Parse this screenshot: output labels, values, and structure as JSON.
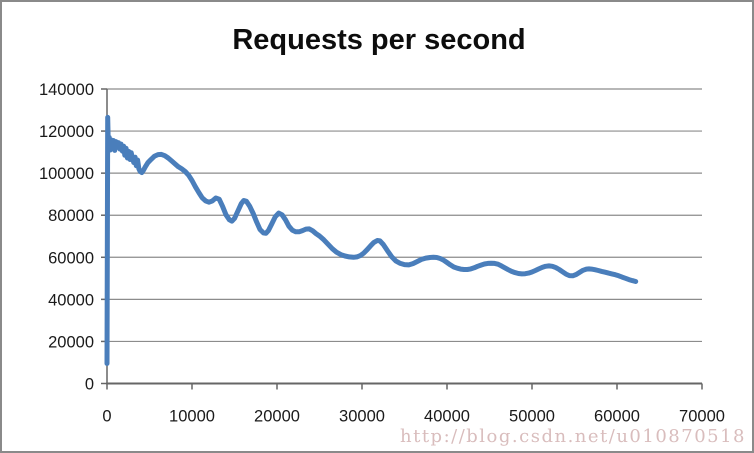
{
  "watermark": {
    "text": "http://blog.csdn.net/u010870518",
    "color": "#D9BDBD"
  },
  "chart_data": {
    "type": "line",
    "title": "Requests per second",
    "xlabel": "",
    "ylabel": "",
    "xlim": [
      0,
      70000
    ],
    "ylim": [
      0,
      140000
    ],
    "grid": "horizontal",
    "legend": "none",
    "colors": {
      "grid": "#8C8C8C",
      "axis": "#666666",
      "tick_text": "#1A1A1A",
      "line": "#4A7EBB"
    },
    "x_ticks": [
      {
        "v": 0,
        "label": "0"
      },
      {
        "v": 10000,
        "label": "10000"
      },
      {
        "v": 20000,
        "label": "20000"
      },
      {
        "v": 30000,
        "label": "30000"
      },
      {
        "v": 40000,
        "label": "40000"
      },
      {
        "v": 50000,
        "label": "50000"
      },
      {
        "v": 60000,
        "label": "60000"
      },
      {
        "v": 70000,
        "label": "70000"
      }
    ],
    "y_ticks": [
      {
        "v": 0,
        "label": "0"
      },
      {
        "v": 20000,
        "label": "20000"
      },
      {
        "v": 40000,
        "label": "40000"
      },
      {
        "v": 60000,
        "label": "60000"
      },
      {
        "v": 80000,
        "label": "80000"
      },
      {
        "v": 100000,
        "label": "100000"
      },
      {
        "v": 120000,
        "label": "120000"
      },
      {
        "v": 140000,
        "label": "140000"
      }
    ],
    "series": [
      {
        "name": "Requests per second",
        "color": "#4A7EBB",
        "stroke_width": 5,
        "points": [
          [
            0,
            9500
          ],
          [
            80,
            126500
          ],
          [
            160,
            111000
          ],
          [
            260,
            117000
          ],
          [
            360,
            111000
          ],
          [
            470,
            115800
          ],
          [
            600,
            113200
          ],
          [
            750,
            115500
          ],
          [
            900,
            110800
          ],
          [
            1050,
            115000
          ],
          [
            1200,
            112300
          ],
          [
            1350,
            114500
          ],
          [
            1500,
            111500
          ],
          [
            1650,
            113800
          ],
          [
            1800,
            110500
          ],
          [
            1950,
            112800
          ],
          [
            2100,
            108500
          ],
          [
            2250,
            111800
          ],
          [
            2400,
            107200
          ],
          [
            2550,
            110300
          ],
          [
            2700,
            106500
          ],
          [
            2850,
            109700
          ],
          [
            3000,
            107000
          ],
          [
            3150,
            105000
          ],
          [
            3300,
            107600
          ],
          [
            3450,
            103500
          ],
          [
            3600,
            106200
          ],
          [
            3750,
            102000
          ],
          [
            3900,
            100800
          ],
          [
            4100,
            100300
          ],
          [
            4300,
            101500
          ],
          [
            4500,
            103000
          ],
          [
            4800,
            104900
          ],
          [
            5200,
            106600
          ],
          [
            5600,
            108100
          ],
          [
            6000,
            108800
          ],
          [
            6400,
            108900
          ],
          [
            6800,
            108300
          ],
          [
            7200,
            107200
          ],
          [
            7600,
            105800
          ],
          [
            8000,
            104400
          ],
          [
            8400,
            103000
          ],
          [
            8800,
            102000
          ],
          [
            9200,
            100800
          ],
          [
            9600,
            99000
          ],
          [
            10000,
            96500
          ],
          [
            10400,
            93500
          ],
          [
            10800,
            90800
          ],
          [
            11200,
            88300
          ],
          [
            11600,
            86800
          ],
          [
            12000,
            86200
          ],
          [
            12400,
            86800
          ],
          [
            12800,
            88200
          ],
          [
            13200,
            87600
          ],
          [
            13600,
            84200
          ],
          [
            14000,
            80200
          ],
          [
            14400,
            77800
          ],
          [
            14700,
            77200
          ],
          [
            15000,
            78500
          ],
          [
            15400,
            82000
          ],
          [
            15800,
            85500
          ],
          [
            16100,
            87000
          ],
          [
            16400,
            86600
          ],
          [
            16800,
            84200
          ],
          [
            17200,
            80800
          ],
          [
            17600,
            76800
          ],
          [
            18000,
            73200
          ],
          [
            18400,
            71600
          ],
          [
            18700,
            71400
          ],
          [
            19000,
            72800
          ],
          [
            19400,
            76000
          ],
          [
            19800,
            79300
          ],
          [
            20200,
            81000
          ],
          [
            20600,
            80200
          ],
          [
            21000,
            77800
          ],
          [
            21400,
            74800
          ],
          [
            21800,
            72900
          ],
          [
            22200,
            72100
          ],
          [
            22600,
            72100
          ],
          [
            23000,
            72700
          ],
          [
            23400,
            73400
          ],
          [
            23800,
            73500
          ],
          [
            24200,
            72600
          ],
          [
            24600,
            71200
          ],
          [
            25000,
            70100
          ],
          [
            25500,
            68300
          ],
          [
            26000,
            66200
          ],
          [
            26500,
            64100
          ],
          [
            27000,
            62400
          ],
          [
            27500,
            61300
          ],
          [
            28000,
            60600
          ],
          [
            28500,
            60200
          ],
          [
            29000,
            60000
          ],
          [
            29400,
            60200
          ],
          [
            29800,
            60800
          ],
          [
            30200,
            62000
          ],
          [
            30600,
            63600
          ],
          [
            31000,
            65400
          ],
          [
            31400,
            67100
          ],
          [
            31800,
            68000
          ],
          [
            32100,
            67800
          ],
          [
            32500,
            66100
          ],
          [
            33000,
            63100
          ],
          [
            33500,
            60200
          ],
          [
            34000,
            58200
          ],
          [
            34500,
            57100
          ],
          [
            35000,
            56500
          ],
          [
            35500,
            56400
          ],
          [
            36000,
            57000
          ],
          [
            36500,
            58000
          ],
          [
            37000,
            59000
          ],
          [
            37500,
            59600
          ],
          [
            38000,
            59900
          ],
          [
            38400,
            60000
          ],
          [
            38800,
            59900
          ],
          [
            39200,
            59400
          ],
          [
            39600,
            58600
          ],
          [
            40000,
            57500
          ],
          [
            40400,
            56400
          ],
          [
            40800,
            55400
          ],
          [
            41200,
            54800
          ],
          [
            41600,
            54400
          ],
          [
            42000,
            54200
          ],
          [
            42400,
            54200
          ],
          [
            42800,
            54500
          ],
          [
            43200,
            55000
          ],
          [
            43600,
            55700
          ],
          [
            44000,
            56300
          ],
          [
            44400,
            56800
          ],
          [
            44800,
            57100
          ],
          [
            45200,
            57200
          ],
          [
            45600,
            57100
          ],
          [
            46000,
            56700
          ],
          [
            46400,
            55900
          ],
          [
            46800,
            55000
          ],
          [
            47200,
            54100
          ],
          [
            47600,
            53300
          ],
          [
            48000,
            52700
          ],
          [
            48400,
            52300
          ],
          [
            48800,
            52100
          ],
          [
            49200,
            52200
          ],
          [
            49600,
            52500
          ],
          [
            50000,
            53000
          ],
          [
            50400,
            53700
          ],
          [
            50800,
            54500
          ],
          [
            51200,
            55200
          ],
          [
            51600,
            55700
          ],
          [
            52000,
            55900
          ],
          [
            52400,
            55700
          ],
          [
            52800,
            55100
          ],
          [
            53200,
            54200
          ],
          [
            53600,
            53100
          ],
          [
            54000,
            52000
          ],
          [
            54400,
            51300
          ],
          [
            54800,
            51200
          ],
          [
            55200,
            51800
          ],
          [
            55600,
            52800
          ],
          [
            56000,
            53800
          ],
          [
            56400,
            54400
          ],
          [
            56700,
            54500
          ],
          [
            57000,
            54400
          ],
          [
            57400,
            54100
          ],
          [
            57800,
            53700
          ],
          [
            58200,
            53300
          ],
          [
            58600,
            52900
          ],
          [
            59000,
            52500
          ],
          [
            59400,
            52100
          ],
          [
            59800,
            51700
          ],
          [
            60200,
            51200
          ],
          [
            60600,
            50600
          ],
          [
            61000,
            50000
          ],
          [
            61400,
            49400
          ],
          [
            61800,
            48900
          ],
          [
            62200,
            48500
          ]
        ]
      }
    ]
  }
}
